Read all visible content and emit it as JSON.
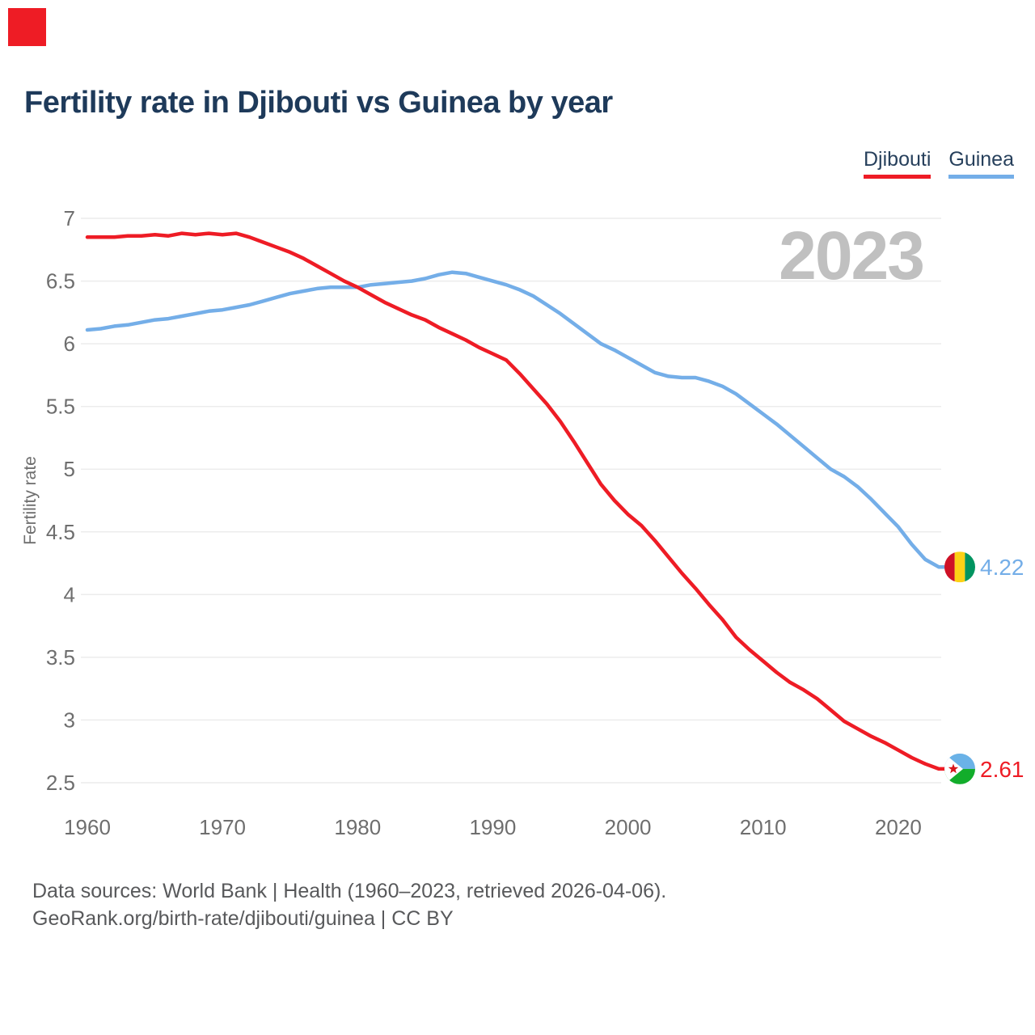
{
  "page": {
    "background": "#ffffff",
    "corner_marker_color": "#ee1c25"
  },
  "header": {
    "title": "Fertility rate in Djibouti vs Guinea by year"
  },
  "legend": {
    "items": [
      {
        "label": "Djibouti",
        "color": "#ee1c25"
      },
      {
        "label": "Guinea",
        "color": "#74aee8"
      }
    ]
  },
  "footer": {
    "line1": "Data sources: World Bank | Health (1960–2023, retrieved 2026-04-06).",
    "line2": "GeoRank.org/birth-rate/djibouti/guinea | CC BY"
  },
  "chart_data": {
    "type": "line",
    "title": "Fertility rate in Djibouti vs Guinea by year",
    "xlabel": "",
    "ylabel": "Fertility rate",
    "xlim": [
      1960,
      2023
    ],
    "ylim": [
      2.5,
      7
    ],
    "xticks": [
      1960,
      1970,
      1980,
      1990,
      2000,
      2010,
      2020
    ],
    "yticks": [
      7,
      6.5,
      6,
      5.5,
      5,
      4.5,
      4,
      3.5,
      3,
      2.5
    ],
    "grid": "horizontal",
    "gridline_color": "#ececec",
    "legend_position": "top-right",
    "watermark": "2023",
    "x": [
      1960,
      1961,
      1962,
      1963,
      1964,
      1965,
      1966,
      1967,
      1968,
      1969,
      1970,
      1971,
      1972,
      1973,
      1974,
      1975,
      1976,
      1977,
      1978,
      1979,
      1980,
      1981,
      1982,
      1983,
      1984,
      1985,
      1986,
      1987,
      1988,
      1989,
      1990,
      1991,
      1992,
      1993,
      1994,
      1995,
      1996,
      1997,
      1998,
      1999,
      2000,
      2001,
      2002,
      2003,
      2004,
      2005,
      2006,
      2007,
      2008,
      2009,
      2010,
      2011,
      2012,
      2013,
      2014,
      2015,
      2016,
      2017,
      2018,
      2019,
      2020,
      2021,
      2022,
      2023
    ],
    "series": [
      {
        "name": "Djibouti",
        "color": "#ee1c25",
        "end_label": "2.61",
        "flag_icon": "djibouti-flag-icon",
        "values": [
          6.85,
          6.85,
          6.85,
          6.86,
          6.86,
          6.87,
          6.86,
          6.88,
          6.87,
          6.88,
          6.87,
          6.88,
          6.85,
          6.81,
          6.77,
          6.73,
          6.68,
          6.62,
          6.56,
          6.5,
          6.45,
          6.39,
          6.33,
          6.28,
          6.23,
          6.19,
          6.13,
          6.08,
          6.03,
          5.97,
          5.92,
          5.87,
          5.76,
          5.64,
          5.52,
          5.38,
          5.22,
          5.05,
          4.88,
          4.75,
          4.64,
          4.55,
          4.43,
          4.3,
          4.17,
          4.05,
          3.92,
          3.8,
          3.66,
          3.56,
          3.47,
          3.38,
          3.3,
          3.24,
          3.17,
          3.08,
          2.99,
          2.93,
          2.87,
          2.82,
          2.76,
          2.7,
          2.65,
          2.61
        ]
      },
      {
        "name": "Guinea",
        "color": "#74aee8",
        "end_label": "4.22",
        "flag_icon": "guinea-flag-icon",
        "values": [
          6.11,
          6.12,
          6.14,
          6.15,
          6.17,
          6.19,
          6.2,
          6.22,
          6.24,
          6.26,
          6.27,
          6.29,
          6.31,
          6.34,
          6.37,
          6.4,
          6.42,
          6.44,
          6.45,
          6.45,
          6.45,
          6.47,
          6.48,
          6.49,
          6.5,
          6.52,
          6.55,
          6.57,
          6.56,
          6.53,
          6.5,
          6.47,
          6.43,
          6.38,
          6.31,
          6.24,
          6.16,
          6.08,
          6.0,
          5.95,
          5.89,
          5.83,
          5.77,
          5.74,
          5.73,
          5.73,
          5.7,
          5.66,
          5.6,
          5.52,
          5.44,
          5.36,
          5.27,
          5.18,
          5.09,
          5.0,
          4.94,
          4.86,
          4.76,
          4.65,
          4.54,
          4.4,
          4.28,
          4.22
        ]
      }
    ],
    "flag_colors": {
      "guinea": {
        "red": "#ce1126",
        "yellow": "#fcd116",
        "green": "#009460"
      },
      "djibouti": {
        "blue": "#6ab2e7",
        "green": "#12ad2b",
        "white": "#ffffff",
        "star": "#d7141a"
      }
    }
  }
}
